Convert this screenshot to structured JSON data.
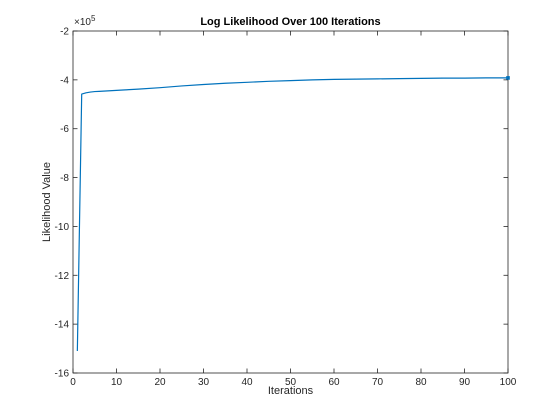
{
  "chart_data": {
    "type": "line",
    "title": "Log Likelihood Over 100 Iterations",
    "xlabel": "Iterations",
    "ylabel": "Likelihood Value",
    "y_multiplier": "×10",
    "y_multiplier_exponent": "5",
    "xlim": [
      0,
      100
    ],
    "ylim": [
      -16,
      -2
    ],
    "x_ticks": [
      0,
      10,
      20,
      30,
      40,
      50,
      60,
      70,
      80,
      90,
      100
    ],
    "y_ticks": [
      -16,
      -14,
      -12,
      -10,
      -8,
      -6,
      -4,
      -2
    ],
    "grid": false,
    "line_color": "#0072BD",
    "series": [
      {
        "x": [
          1,
          2,
          3,
          4,
          5,
          6,
          8,
          10,
          12,
          15,
          20,
          25,
          30,
          35,
          40,
          45,
          50,
          55,
          60,
          65,
          70,
          75,
          80,
          85,
          90,
          95,
          100
        ],
        "values": [
          -15.1,
          -4.58,
          -4.53,
          -4.5,
          -4.48,
          -4.47,
          -4.45,
          -4.43,
          -4.41,
          -4.38,
          -4.32,
          -4.25,
          -4.19,
          -4.14,
          -4.1,
          -4.06,
          -4.03,
          -4.0,
          -3.98,
          -3.97,
          -3.96,
          -3.95,
          -3.94,
          -3.93,
          -3.93,
          -3.92,
          -3.92
        ]
      }
    ]
  }
}
